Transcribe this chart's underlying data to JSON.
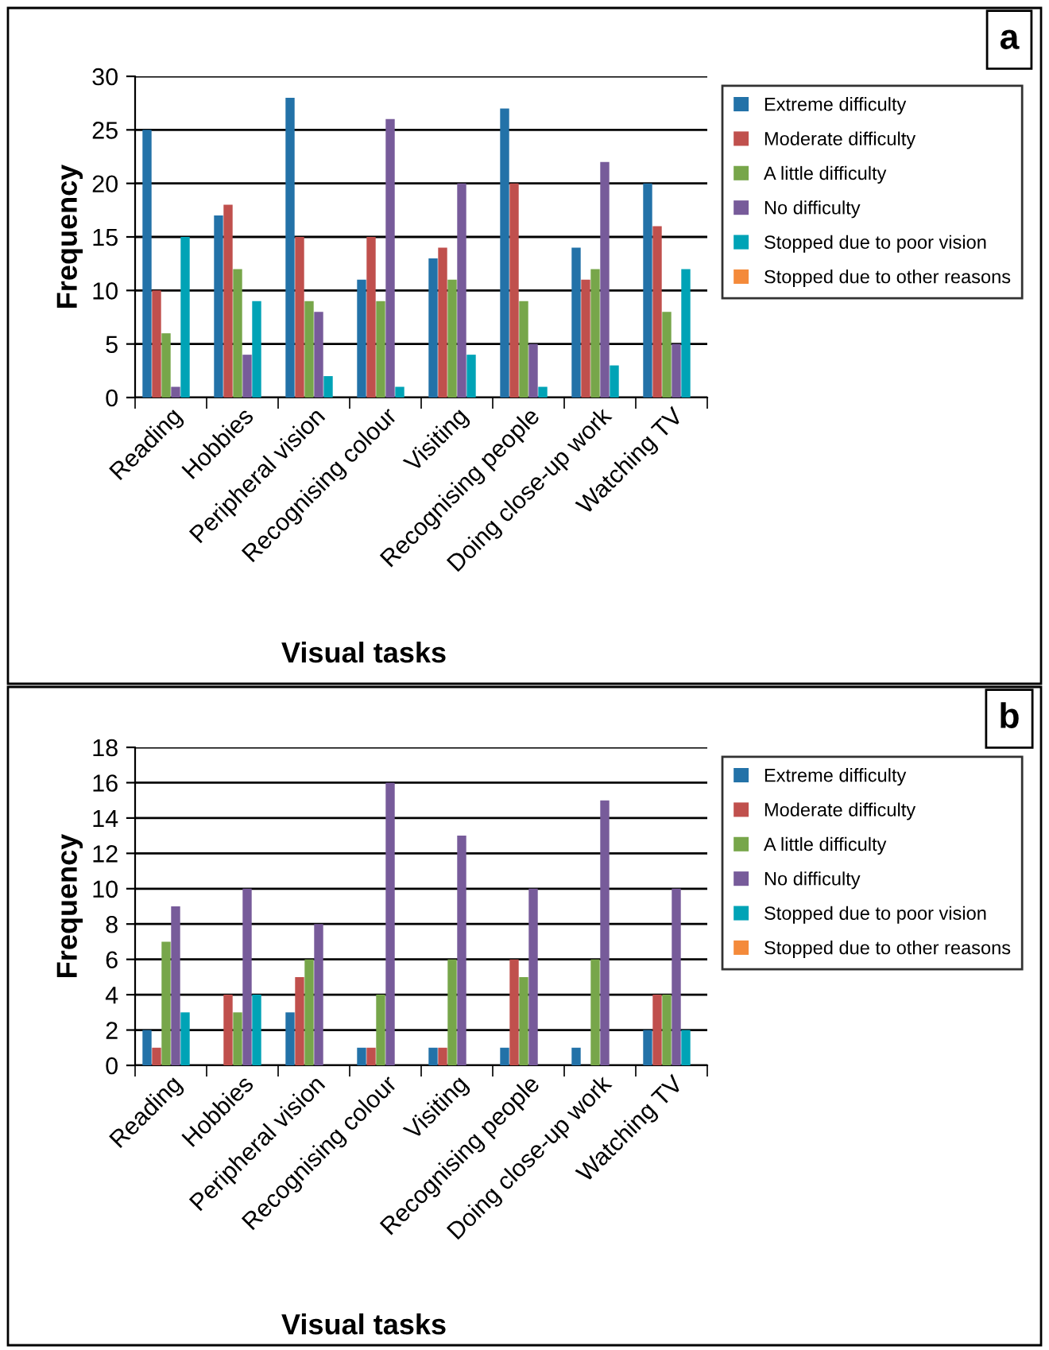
{
  "chart_data": [
    {
      "type": "bar",
      "categories": [
        "Reading",
        "Hobbies",
        "Peripheral vision",
        "Recognising colour",
        "Visiting",
        "Recognising people",
        "Doing close-up work",
        "Watching TV"
      ],
      "xlabel": "Visual tasks",
      "ylabel": "Frequency",
      "annotations": [
        "a"
      ],
      "ylim": [
        0,
        30
      ],
      "yticks": [
        0,
        5,
        10,
        15,
        20,
        25,
        30
      ],
      "grid": "y",
      "legend": "right",
      "series": [
        {
          "name": "Extreme difficulty",
          "color": "#2372a8",
          "values": [
            25,
            17,
            28,
            11,
            13,
            27,
            14,
            20
          ]
        },
        {
          "name": "Moderate difficulty",
          "color": "#c0504d",
          "values": [
            10,
            18,
            15,
            15,
            14,
            20,
            11,
            16
          ]
        },
        {
          "name": "A little difficulty",
          "color": "#77a64a",
          "values": [
            6,
            12,
            9,
            9,
            11,
            9,
            12,
            8
          ]
        },
        {
          "name": "No difficulty",
          "color": "#775b9a",
          "values": [
            1,
            4,
            8,
            26,
            20,
            5,
            22,
            5
          ]
        },
        {
          "name": "Stopped due to poor vision",
          "color": "#00a3b6",
          "values": [
            15,
            9,
            2,
            1,
            4,
            1,
            3,
            12
          ]
        },
        {
          "name": "Stopped due to other reasons",
          "color": "#f48a3a",
          "values": [
            0,
            0,
            0,
            0,
            0,
            0,
            0,
            0
          ]
        }
      ]
    },
    {
      "type": "bar",
      "categories": [
        "Reading",
        "Hobbies",
        "Peripheral vision",
        "Recognising colour",
        "Visiting",
        "Recognising people",
        "Doing close-up work",
        "Watching TV"
      ],
      "xlabel": "Visual tasks",
      "ylabel": "Frequency",
      "annotations": [
        "b"
      ],
      "ylim": [
        0,
        18
      ],
      "yticks": [
        0,
        2,
        4,
        6,
        8,
        10,
        12,
        14,
        16,
        18
      ],
      "grid": "y",
      "legend": "right",
      "series": [
        {
          "name": "Extreme difficulty",
          "color": "#2372a8",
          "values": [
            2,
            0,
            3,
            1,
            1,
            1,
            1,
            2
          ]
        },
        {
          "name": "Moderate difficulty",
          "color": "#c0504d",
          "values": [
            1,
            4,
            5,
            1,
            1,
            6,
            0,
            4
          ]
        },
        {
          "name": "A little difficulty",
          "color": "#77a64a",
          "values": [
            7,
            3,
            6,
            4,
            6,
            5,
            6,
            4
          ]
        },
        {
          "name": "No difficulty",
          "color": "#775b9a",
          "values": [
            9,
            10,
            8,
            16,
            13,
            10,
            15,
            10
          ]
        },
        {
          "name": "Stopped due to poor vision",
          "color": "#00a3b6",
          "values": [
            3,
            4,
            0,
            0,
            0,
            0,
            0,
            2
          ]
        },
        {
          "name": "Stopped due to other reasons",
          "color": "#f48a3a",
          "values": [
            0,
            0,
            0,
            0,
            0,
            0,
            0,
            0
          ]
        }
      ]
    }
  ]
}
